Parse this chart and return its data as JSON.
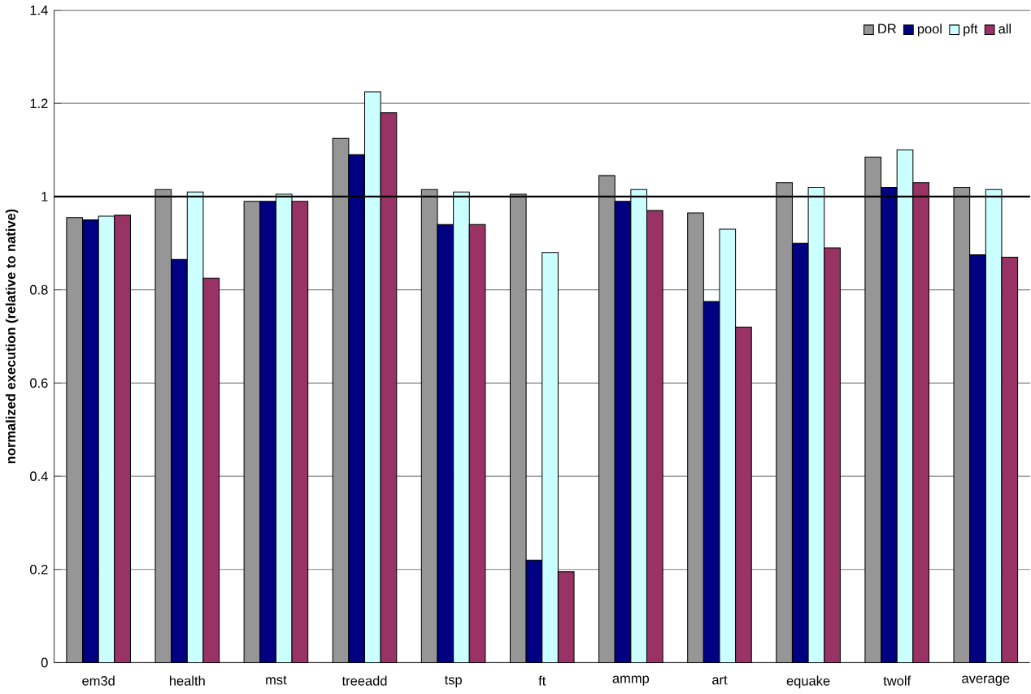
{
  "chart_data": {
    "type": "bar",
    "ylabel": "normalized execution (relative to native)",
    "categories": [
      "em3d",
      "health",
      "mst",
      "treeadd",
      "tsp",
      "ft",
      "ammp",
      "art",
      "equake",
      "twolf",
      "average"
    ],
    "series": [
      {
        "name": "DR",
        "color": "#969696",
        "values": [
          0.955,
          1.015,
          0.99,
          1.125,
          1.015,
          1.005,
          1.045,
          0.965,
          1.03,
          1.085,
          1.02
        ]
      },
      {
        "name": "pool",
        "color": "#000080",
        "values": [
          0.95,
          0.865,
          0.99,
          1.09,
          0.94,
          0.22,
          0.99,
          0.775,
          0.9,
          1.02,
          0.875
        ]
      },
      {
        "name": "pft",
        "color": "#ccffff",
        "values": [
          0.958,
          1.01,
          1.005,
          1.225,
          1.01,
          0.88,
          1.015,
          0.93,
          1.02,
          1.1,
          1.015
        ]
      },
      {
        "name": "all",
        "color": "#993366",
        "values": [
          0.96,
          0.825,
          0.99,
          1.18,
          0.94,
          0.195,
          0.97,
          0.72,
          0.89,
          1.03,
          0.87
        ]
      }
    ],
    "ylim": [
      0,
      1.4
    ],
    "yticks": [
      0,
      0.2,
      0.4,
      0.6,
      0.8,
      1,
      1.2,
      1.4
    ],
    "grid": "y",
    "legend": "top right",
    "ref_lines": [
      {
        "axis": "y",
        "value": 1,
        "color": "#000000"
      }
    ]
  }
}
